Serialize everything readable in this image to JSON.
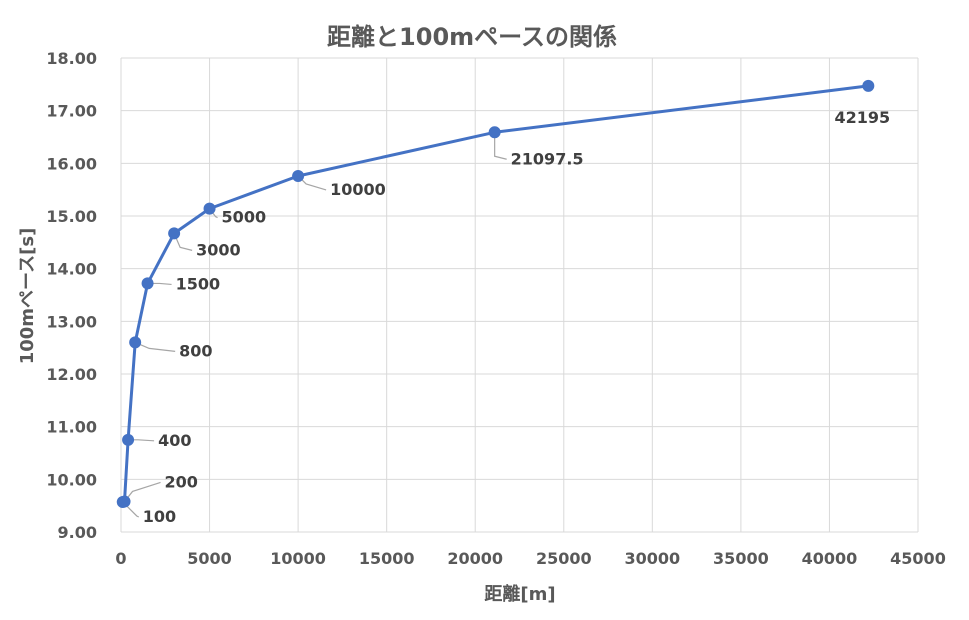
{
  "chart_data": {
    "type": "scatter",
    "title": "距離と100mペースの関係",
    "xlabel": "距離[m]",
    "ylabel": "100mペース[s]",
    "xlim": [
      0,
      45000
    ],
    "ylim": [
      9.0,
      18.0
    ],
    "x_ticks": [
      "0",
      "5000",
      "10000",
      "15000",
      "20000",
      "25000",
      "30000",
      "35000",
      "40000",
      "45000"
    ],
    "y_ticks": [
      "9.00",
      "10.00",
      "11.00",
      "12.00",
      "13.00",
      "14.00",
      "15.00",
      "16.00",
      "17.00",
      "18.00"
    ],
    "grid": true,
    "series": [
      {
        "color": "#4472C4",
        "points": [
          {
            "x": 100,
            "y": 9.57,
            "label": "100"
          },
          {
            "x": 200,
            "y": 9.58,
            "label": "200"
          },
          {
            "x": 400,
            "y": 10.75,
            "label": "400"
          },
          {
            "x": 800,
            "y": 12.6,
            "label": "800"
          },
          {
            "x": 1500,
            "y": 13.72,
            "label": "1500"
          },
          {
            "x": 3000,
            "y": 14.67,
            "label": "3000"
          },
          {
            "x": 5000,
            "y": 15.14,
            "label": "5000"
          },
          {
            "x": 10000,
            "y": 15.76,
            "label": "10000"
          },
          {
            "x": 21097.5,
            "y": 16.59,
            "label": "21097.5"
          },
          {
            "x": 42195,
            "y": 17.47,
            "label": "42195"
          }
        ]
      }
    ]
  }
}
